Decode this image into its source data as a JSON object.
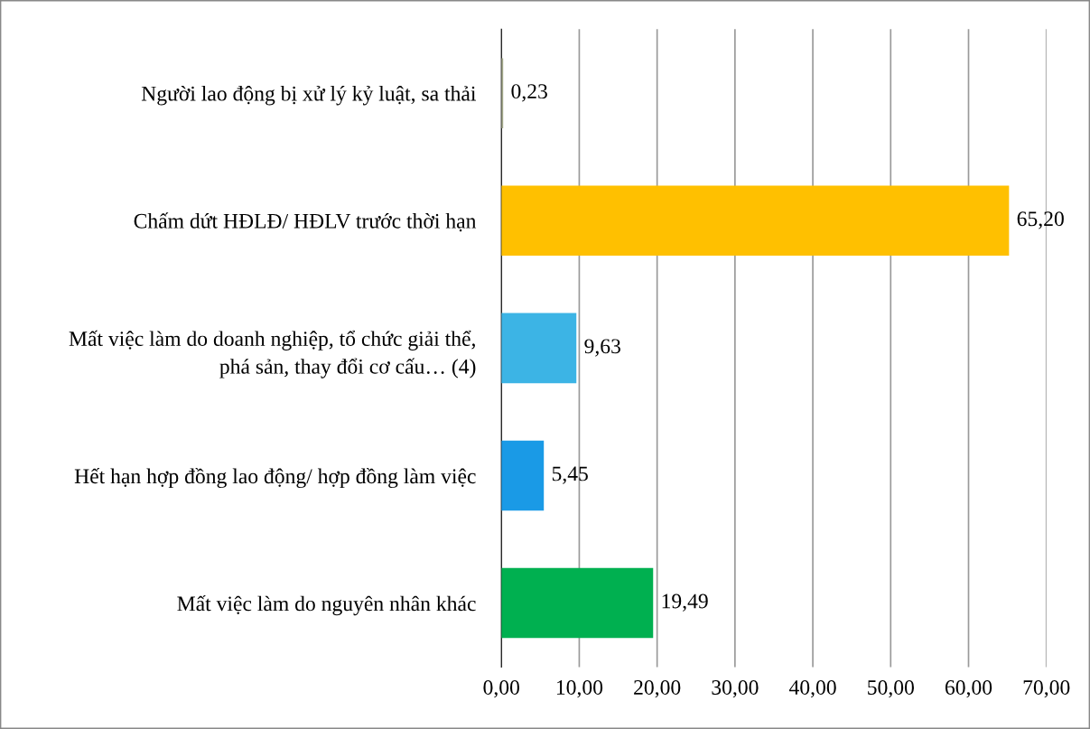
{
  "chart_data": {
    "type": "bar",
    "orientation": "horizontal",
    "categories": [
      "Người lao động bị xử lý kỷ luật, sa thải",
      "Chấm dứt HĐLĐ/ HĐLV trước thời hạn",
      "Mất việc làm do doanh nghiệp, tổ chức giải thể,\nphá sản, thay đổi cơ cấu… (4)",
      "Hết hạn hợp đồng lao động/ hợp đồng làm việc",
      "Mất việc làm do nguyên nhân khác"
    ],
    "values": [
      0.23,
      65.2,
      9.63,
      5.45,
      19.49
    ],
    "value_labels": [
      "0,23",
      "65,20",
      "9,63",
      "5,45",
      "19,49"
    ],
    "colors": [
      "#a3a98a",
      "#ffc000",
      "#3cb4e5",
      "#1a9ae6",
      "#00b050"
    ],
    "xlim": [
      0,
      70
    ],
    "xticks": [
      {
        "value": 0,
        "label": "0,00"
      },
      {
        "value": 10,
        "label": "10,00"
      },
      {
        "value": 20,
        "label": "20,00"
      },
      {
        "value": 30,
        "label": "30,00"
      },
      {
        "value": 40,
        "label": "40,00"
      },
      {
        "value": 50,
        "label": "50,00"
      },
      {
        "value": 60,
        "label": "60,00"
      },
      {
        "value": 70,
        "label": "70,00"
      }
    ],
    "grid": "x"
  }
}
